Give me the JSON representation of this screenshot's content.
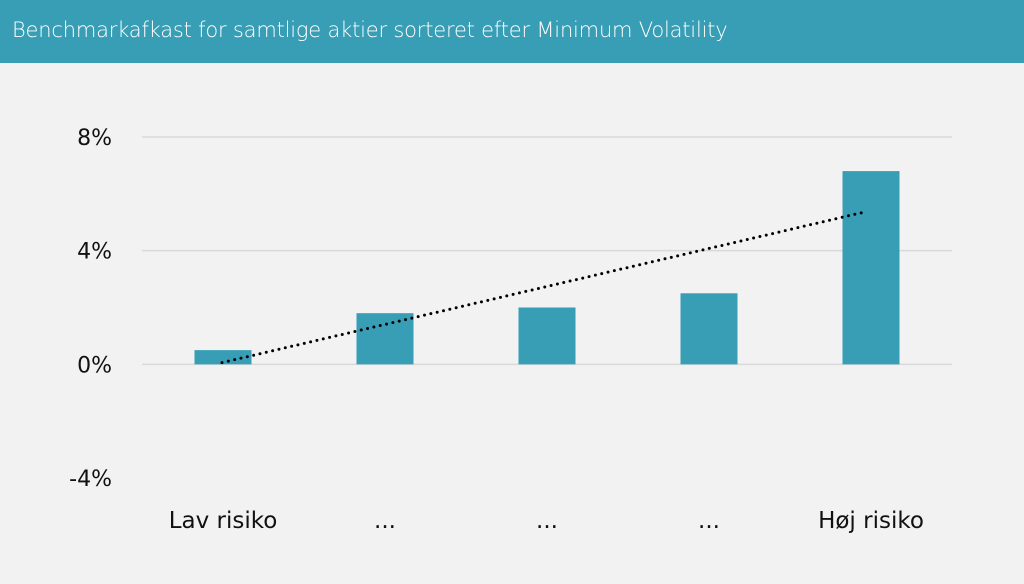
{
  "chart_data": {
    "type": "bar",
    "title": "Benchmarkafkast for samtlige aktier sorteret efter Minimum Volatility",
    "categories": [
      "Lav risiko",
      "...",
      "...",
      "...",
      "Høj risiko"
    ],
    "values": [
      0.5,
      1.8,
      2.0,
      2.5,
      6.8
    ],
    "unit": "%",
    "ylim": [
      -4,
      8
    ],
    "yticks": [
      8,
      4,
      0,
      -4
    ],
    "ytick_labels": [
      "8%",
      "4%",
      "0%",
      "-4%"
    ],
    "grid": true,
    "trendline": {
      "type": "linear",
      "style": "dotted",
      "color": "#000000"
    },
    "colors": {
      "bar": "#379eb5",
      "header": "#379eb5",
      "grid": "#d9d9d9"
    }
  }
}
